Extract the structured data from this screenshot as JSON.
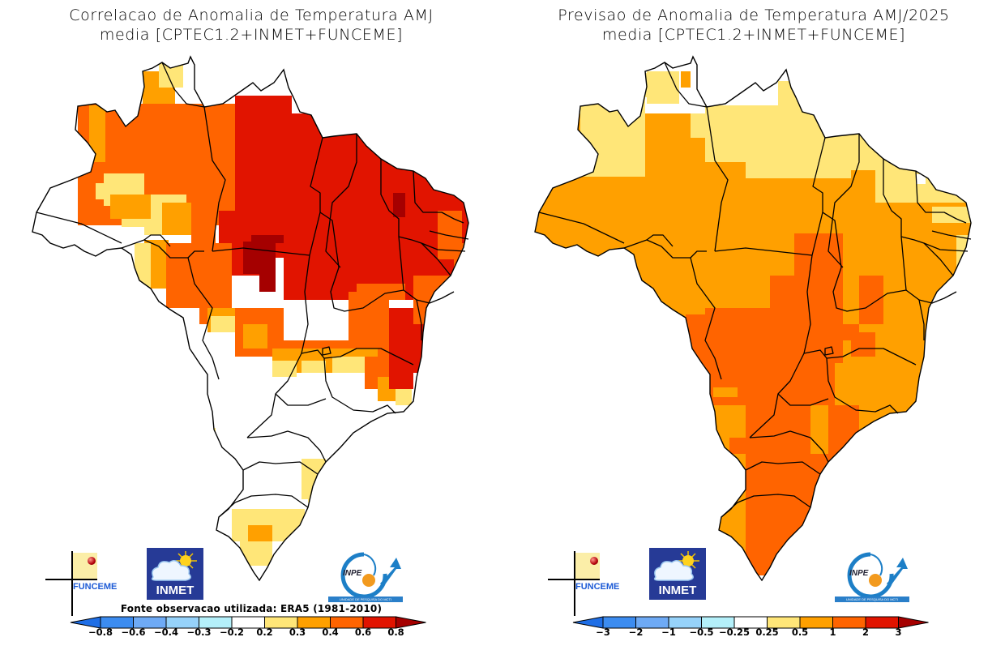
{
  "panels": [
    {
      "id": "correlation",
      "title_line1": "Correlacao de Anomalia de Temperatura AMJ",
      "title_line2": "media [CPTEC1.2+INMET+FUNCEME]",
      "source_note": "Fonte observacao utilizada: ERA5 (1981-2010)",
      "colorbar": {
        "labels": [
          "-0.8",
          "-0.6",
          "-0.4",
          "-0.3",
          "-0.2",
          "0.2",
          "0.3",
          "0.4",
          "0.6",
          "0.8"
        ],
        "colors": [
          "#1e6ee6",
          "#3c8cf0",
          "#6eaaf5",
          "#96d2fa",
          "#b4f0fa",
          "#ffffff",
          "#ffe678",
          "#ffa000",
          "#ff6400",
          "#e11400",
          "#a50000"
        ]
      },
      "logos": [
        "FUNCEME",
        "INMET",
        "INPE"
      ]
    },
    {
      "id": "forecast",
      "title_line1": "Previsao de Anomalia de Temperatura AMJ/2025",
      "title_line2": "media [CPTEC1.2+INMET+FUNCEME]",
      "source_note": "",
      "colorbar": {
        "labels": [
          "-3",
          "-2",
          "-1",
          "-0.5",
          "-0.25",
          "0.25",
          "0.5",
          "1",
          "2",
          "3"
        ],
        "colors": [
          "#1e6ee6",
          "#3c8cf0",
          "#6eaaf5",
          "#96d2fa",
          "#b4f0fa",
          "#ffffff",
          "#ffe678",
          "#ffa000",
          "#ff6400",
          "#e11400",
          "#a50000"
        ]
      },
      "logos": [
        "FUNCEME",
        "INMET",
        "INPE"
      ]
    }
  ],
  "logo_text": {
    "funceme": "FUNCEME",
    "inmet": "INMET",
    "inpe": "INPE",
    "inpe_sub": "UNIDADE DE PESQUISA DO MCTI"
  },
  "legend_classes": {
    "correlation_by_region": {
      "north_west_amazonas": "0.3-0.6",
      "para_tocantins_maranhao_piaui_ceara": "0.6-0.8",
      "mato_grosso_core": ">0.8",
      "south_southeast": "<0.2",
      "rio_grande_do_sul_center": "0.2-0.4"
    },
    "forecast_by_region": {
      "northern_coast_roraima_amapa": "0.25-0.5",
      "amazon_northeast_southeast": "0.5-1",
      "center_west_south": "1-2"
    }
  }
}
